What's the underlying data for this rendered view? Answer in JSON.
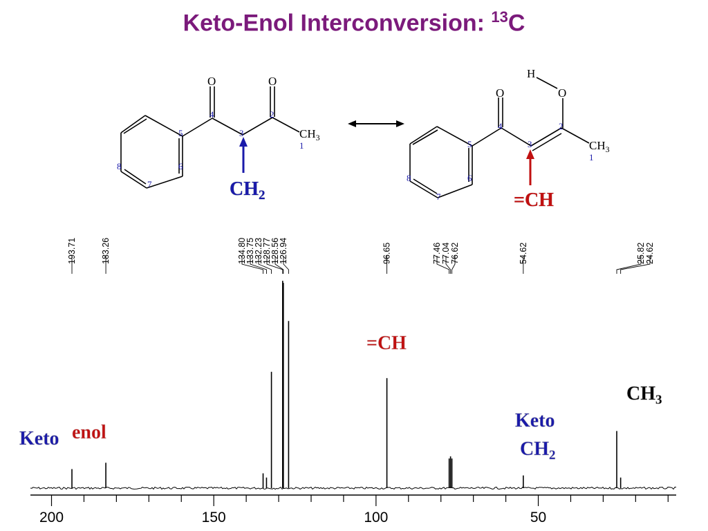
{
  "slide": {
    "title": "Keto-Enol Interconversion: ",
    "title_sup": "13",
    "title_end": "C",
    "title_color": "#7b1a7b"
  },
  "structures": {
    "keto": {
      "atom_O_a": "O",
      "atom_O_b": "O",
      "atom_CH3": "CH",
      "atom_CH3_sub": "3",
      "numbers": [
        "1",
        "2",
        "3",
        "4",
        "5",
        "6",
        "7",
        "8"
      ],
      "label": "CH",
      "label_sub": "2",
      "label_color": "#1a1aaa"
    },
    "enol": {
      "atom_H": "H",
      "atom_O_a": "O",
      "atom_O_b": "O",
      "atom_CH3": "CH",
      "atom_CH3_sub": "3",
      "numbers": [
        "1",
        "2",
        "3",
        "4",
        "5",
        "6",
        "7",
        "8"
      ],
      "label": "=CH",
      "label_color": "#c01010"
    },
    "number_color": "#1a1aaa",
    "resonance_arrow": "double-headed-arrow"
  },
  "annotations": {
    "keto_carbonyl": "Keto",
    "enol_carbonyl": "enol",
    "enol_ch": "=CH",
    "ch3": "CH",
    "ch3_sub": "3",
    "keto_ch2_line1": "Keto",
    "keto_ch2_line2": "CH",
    "keto_ch2_sub": "2"
  },
  "chart_data": {
    "type": "nmr_spectrum",
    "nucleus": "13C",
    "xaxis": {
      "ticks": [
        "200",
        "150",
        "100",
        "50"
      ],
      "range": [
        206.5,
        7.5
      ],
      "reversed": true
    },
    "peaks": [
      {
        "ppm": 193.71,
        "height": 0.09
      },
      {
        "ppm": 183.26,
        "height": 0.12
      },
      {
        "ppm": 134.8,
        "height": 0.07
      },
      {
        "ppm": 133.75,
        "height": 0.05
      },
      {
        "ppm": 132.23,
        "height": 0.55
      },
      {
        "ppm": 128.77,
        "height": 0.98
      },
      {
        "ppm": 128.56,
        "height": 0.97
      },
      {
        "ppm": 126.94,
        "height": 0.79
      },
      {
        "ppm": 96.65,
        "height": 0.52
      },
      {
        "ppm": 77.46,
        "height": 0.14
      },
      {
        "ppm": 77.04,
        "height": 0.15
      },
      {
        "ppm": 76.62,
        "height": 0.14
      },
      {
        "ppm": 54.62,
        "height": 0.06
      },
      {
        "ppm": 25.82,
        "height": 0.27
      },
      {
        "ppm": 24.62,
        "height": 0.05
      }
    ],
    "peak_labels": [
      "193.71",
      "183.26",
      "134.80",
      "133.75",
      "132.23",
      "128.77",
      "128.56",
      "126.94",
      "96.65",
      "77.46",
      "77.04",
      "76.62",
      "54.62",
      "25.82",
      "24.62"
    ]
  }
}
